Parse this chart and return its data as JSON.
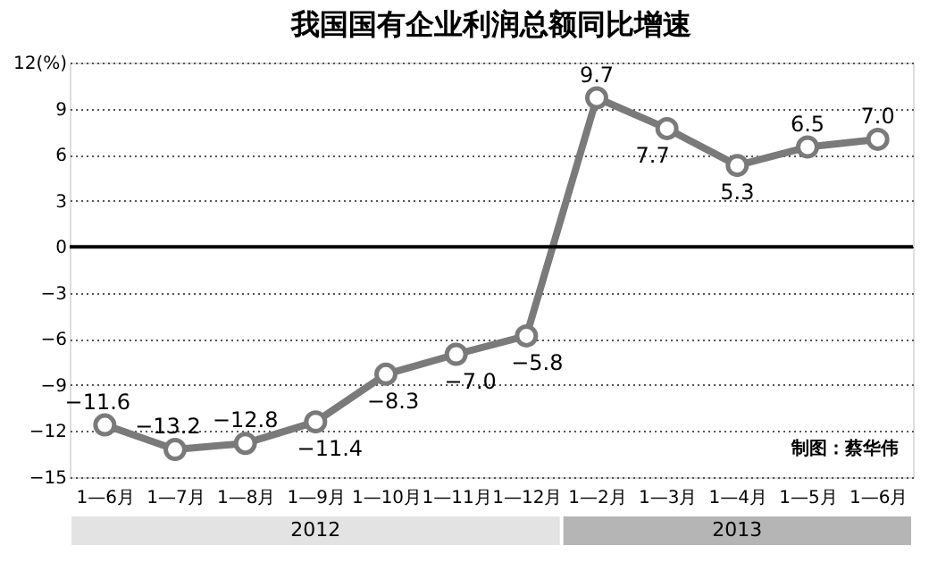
{
  "chart_data": {
    "type": "line",
    "title": "我国国有企业利润总额同比增速",
    "categories": [
      "1—6月",
      "1—7月",
      "1—8月",
      "1—9月",
      "1—10月",
      "1—11月",
      "1—12月",
      "1—2月",
      "1—3月",
      "1—4月",
      "1—5月",
      "1—6月"
    ],
    "series": [
      {
        "color": "#7a7a7a",
        "values": [
          -11.6,
          -13.2,
          -12.8,
          -11.4,
          -8.3,
          -7.0,
          -5.8,
          9.7,
          7.7,
          5.3,
          6.5,
          7.0
        ],
        "value_labels": [
          "−11.6",
          "−13.2",
          "−12.8",
          "−11.4",
          "−8.3",
          "−7.0",
          "−5.8",
          "9.7",
          "7.7",
          "5.3",
          "6.5",
          "7.0"
        ]
      }
    ],
    "ylim": [
      -15,
      12
    ],
    "yticks": [
      -15,
      -12,
      -9,
      -6,
      -3,
      0,
      3,
      6,
      9,
      {
        "value": 12,
        "label": "12(%)"
      }
    ],
    "ref_lines": [
      {
        "axis": "y",
        "value": 0,
        "color": "#000000",
        "line_style": "solid"
      }
    ],
    "grid": "y",
    "marker": "circle",
    "line_style": "solid",
    "annotations": [
      "2012",
      "2013",
      "制图：蔡华伟"
    ]
  }
}
